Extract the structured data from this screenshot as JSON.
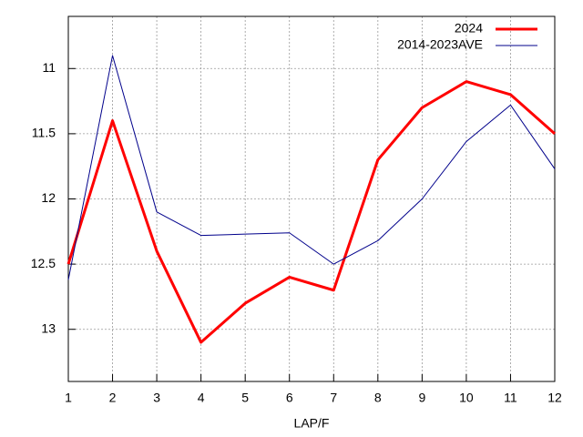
{
  "chart_data": {
    "type": "line",
    "xlabel": "LAP/F",
    "x": [
      1,
      2,
      3,
      4,
      5,
      6,
      7,
      8,
      9,
      10,
      11,
      12
    ],
    "series": [
      {
        "name": "2024",
        "color": "#ff0000",
        "values": [
          12.5,
          11.4,
          12.4,
          13.1,
          12.8,
          12.6,
          12.7,
          11.7,
          11.3,
          11.1,
          11.2,
          11.5
        ]
      },
      {
        "name": "2014-2023AVE",
        "color": "#00008b",
        "values": [
          12.62,
          10.9,
          12.1,
          12.28,
          12.27,
          12.26,
          12.5,
          12.32,
          12.0,
          11.56,
          11.28,
          11.77
        ]
      }
    ],
    "xlim": [
      1,
      12
    ],
    "xticks": [
      1,
      2,
      3,
      4,
      5,
      6,
      7,
      8,
      9,
      10,
      11,
      12
    ],
    "ylim": [
      13.4,
      10.6
    ],
    "yticks": [
      11,
      11.5,
      12,
      12.5,
      13
    ],
    "grid": true,
    "legend": "top-right"
  }
}
